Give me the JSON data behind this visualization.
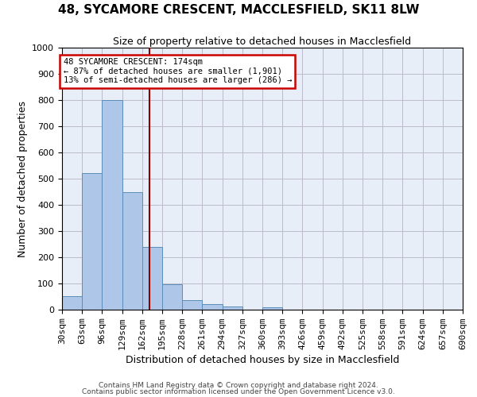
{
  "title": "48, SYCAMORE CRESCENT, MACCLESFIELD, SK11 8LW",
  "subtitle": "Size of property relative to detached houses in Macclesfield",
  "xlabel": "Distribution of detached houses by size in Macclesfield",
  "ylabel": "Number of detached properties",
  "footnote1": "Contains HM Land Registry data © Crown copyright and database right 2024.",
  "footnote2": "Contains public sector information licensed under the Open Government Licence v3.0.",
  "annotation_line1": "48 SYCAMORE CRESCENT: 174sqm",
  "annotation_line2": "← 87% of detached houses are smaller (1,901)",
  "annotation_line3": "13% of semi-detached houses are larger (286) →",
  "bin_edges": [
    30,
    63,
    96,
    129,
    162,
    195,
    228,
    261,
    294,
    327,
    360,
    393,
    426,
    459,
    492,
    525,
    558,
    591,
    624,
    657,
    690
  ],
  "bar_heights": [
    52,
    520,
    800,
    447,
    240,
    97,
    37,
    20,
    12,
    0,
    8,
    0,
    0,
    0,
    0,
    0,
    0,
    0,
    0,
    0
  ],
  "bar_color": "#aec6e8",
  "bar_edge_color": "#5b8db8",
  "property_size": 174,
  "vline_color": "#8b0000",
  "ylim": [
    0,
    1000
  ],
  "yticks": [
    0,
    100,
    200,
    300,
    400,
    500,
    600,
    700,
    800,
    900,
    1000
  ],
  "background_color": "#ffffff",
  "ax_background_color": "#e8eef8",
  "grid_color": "#bbbbcc",
  "annotation_box_color": "#ffffff",
  "annotation_box_edge_color": "#cc0000",
  "title_fontsize": 11,
  "subtitle_fontsize": 9,
  "ylabel_fontsize": 9,
  "xlabel_fontsize": 9,
  "tick_fontsize": 8,
  "footnote_fontsize": 6.5
}
